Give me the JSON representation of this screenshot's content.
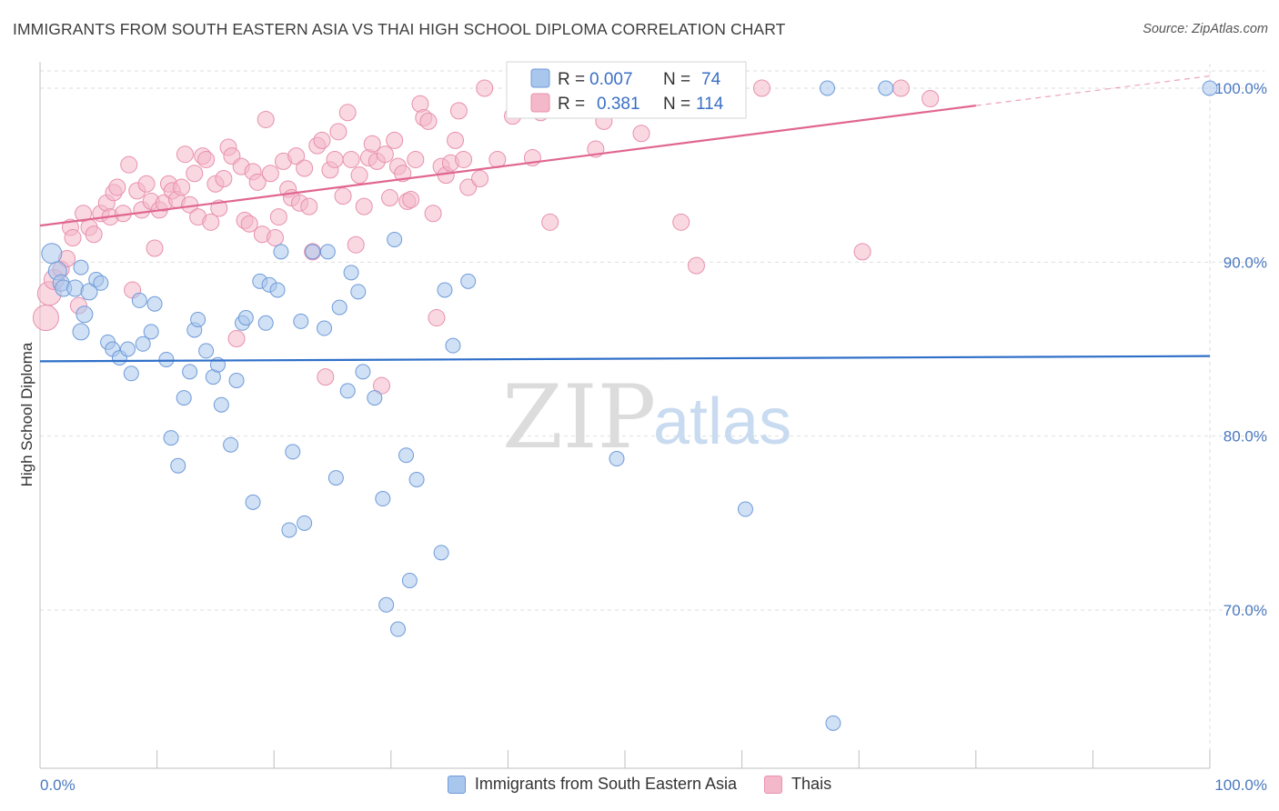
{
  "title": "IMMIGRANTS FROM SOUTH EASTERN ASIA VS THAI HIGH SCHOOL DIPLOMA CORRELATION CHART",
  "source": "Source: ZipAtlas.com",
  "watermark": {
    "zip": "ZIP",
    "atlas": "atlas"
  },
  "colors": {
    "blue_fill": "#a9c6ec",
    "blue_stroke": "#6f9bd8",
    "blue_line": "#2f6fc8",
    "pink_fill": "#f4b8cb",
    "pink_stroke": "#e890ae",
    "pink_line": "#e06690",
    "grid": "#dedede",
    "tick_text": "#4a78c0"
  },
  "legend": {
    "blue": {
      "r_label": "R =",
      "r_value": "0.007",
      "n_label": "N =",
      "n_value": "74"
    },
    "pink": {
      "r_label": "R =",
      "r_value": "0.381",
      "n_label": "N =",
      "n_value": "114"
    }
  },
  "bottom_legend": {
    "blue_label": "Immigrants from South Eastern Asia",
    "pink_label": "Thais"
  },
  "chart_data": {
    "type": "scatter",
    "xlabel": "",
    "ylabel": "High School Diploma",
    "xlim": [
      0,
      100
    ],
    "ylim": [
      60,
      102
    ],
    "x_tick_labels": [
      {
        "value": 0,
        "label": "0.0%"
      },
      {
        "value": 100,
        "label": "100.0%"
      }
    ],
    "y_tick_labels": [
      {
        "value": 70,
        "label": "70.0%"
      },
      {
        "value": 80,
        "label": "80.0%"
      },
      {
        "value": 90,
        "label": "90.0%"
      },
      {
        "value": 100,
        "label": "100.0%"
      }
    ],
    "grid": true,
    "series": [
      {
        "name": "Immigrants from South Eastern Asia",
        "color": "blue",
        "trend": {
          "x0": 0,
          "y0": 84.3,
          "x1": 100,
          "y1": 84.6
        },
        "points": [
          [
            1,
            90.5
          ],
          [
            1.5,
            89.5
          ],
          [
            1.8,
            88.8
          ],
          [
            2,
            88.5
          ],
          [
            3,
            88.5
          ],
          [
            3.5,
            86
          ],
          [
            3.8,
            87
          ],
          [
            4.2,
            88.3
          ],
          [
            4.8,
            89
          ],
          [
            5.2,
            88.8
          ],
          [
            5.8,
            85.4
          ],
          [
            6.2,
            85
          ],
          [
            6.8,
            84.5
          ],
          [
            7.5,
            85
          ],
          [
            7.8,
            83.6
          ],
          [
            8.5,
            87.8
          ],
          [
            8.8,
            85.3
          ],
          [
            9.5,
            86
          ],
          [
            9.8,
            87.6
          ],
          [
            10.8,
            84.4
          ],
          [
            11.2,
            79.9
          ],
          [
            11.8,
            78.3
          ],
          [
            12.3,
            82.2
          ],
          [
            12.8,
            83.7
          ],
          [
            13.2,
            86.1
          ],
          [
            13.5,
            86.7
          ],
          [
            14.2,
            84.9
          ],
          [
            14.8,
            83.4
          ],
          [
            15.2,
            84.1
          ],
          [
            15.5,
            81.8
          ],
          [
            16.3,
            79.5
          ],
          [
            16.8,
            83.2
          ],
          [
            17.3,
            86.5
          ],
          [
            17.6,
            86.8
          ],
          [
            18.2,
            76.2
          ],
          [
            18.8,
            88.9
          ],
          [
            19.3,
            86.5
          ],
          [
            19.6,
            88.7
          ],
          [
            20.3,
            88.4
          ],
          [
            20.6,
            90.6
          ],
          [
            21.3,
            74.6
          ],
          [
            21.6,
            79.1
          ],
          [
            22.3,
            86.6
          ],
          [
            22.6,
            75
          ],
          [
            23.3,
            90.6
          ],
          [
            24.3,
            86.2
          ],
          [
            24.6,
            90.6
          ],
          [
            25.3,
            77.6
          ],
          [
            25.6,
            87.4
          ],
          [
            26.3,
            82.6
          ],
          [
            26.6,
            89.4
          ],
          [
            27.2,
            88.3
          ],
          [
            27.6,
            83.7
          ],
          [
            28.6,
            82.2
          ],
          [
            29.3,
            76.4
          ],
          [
            29.6,
            70.3
          ],
          [
            30.3,
            91.3
          ],
          [
            30.6,
            68.9
          ],
          [
            31.3,
            78.9
          ],
          [
            31.6,
            71.7
          ],
          [
            32.2,
            77.5
          ],
          [
            34.3,
            73.3
          ],
          [
            34.6,
            88.4
          ],
          [
            35.3,
            85.2
          ],
          [
            36.6,
            88.9
          ],
          [
            43.3,
            99.5
          ],
          [
            48.3,
            100
          ],
          [
            49.3,
            78.7
          ],
          [
            60.3,
            75.8
          ],
          [
            67.3,
            100
          ],
          [
            67.8,
            63.5
          ],
          [
            72.3,
            100
          ],
          [
            100,
            100
          ],
          [
            3.5,
            89.7
          ]
        ],
        "radii": [
          11,
          10,
          9,
          9,
          9,
          9,
          9,
          9,
          8,
          8,
          8,
          8,
          8,
          8,
          8,
          8,
          8,
          8,
          8,
          8,
          8,
          8,
          8,
          8,
          8,
          8,
          8,
          8,
          8,
          8,
          8,
          8,
          8,
          8,
          8,
          8,
          8,
          8,
          8,
          8,
          8,
          8,
          8,
          8,
          8,
          8,
          8,
          8,
          8,
          8,
          8,
          8,
          8,
          8,
          8,
          8,
          8,
          8,
          8,
          8,
          8,
          8,
          8,
          8,
          8,
          8,
          8,
          8,
          8,
          8,
          8,
          8,
          8,
          8
        ]
      },
      {
        "name": "Thais",
        "color": "pink",
        "trend": {
          "x0": 0,
          "y0": 92.1,
          "x1": 80,
          "y1": 99
        },
        "trend_dashed": {
          "x0": 80,
          "y0": 99,
          "x1": 100,
          "y1": 100.7
        },
        "points": [
          [
            0.5,
            86.8
          ],
          [
            0.8,
            88.2
          ],
          [
            1.2,
            89
          ],
          [
            1.8,
            89.6
          ],
          [
            2.3,
            90.2
          ],
          [
            2.6,
            92
          ],
          [
            2.8,
            91.4
          ],
          [
            3.3,
            87.5
          ],
          [
            3.7,
            92.8
          ],
          [
            4.2,
            92
          ],
          [
            4.6,
            91.6
          ],
          [
            5.2,
            92.8
          ],
          [
            5.7,
            93.4
          ],
          [
            6,
            92.6
          ],
          [
            6.3,
            94
          ],
          [
            6.6,
            94.3
          ],
          [
            7.1,
            92.8
          ],
          [
            7.6,
            95.6
          ],
          [
            7.9,
            88.4
          ],
          [
            8.3,
            94.1
          ],
          [
            8.7,
            93
          ],
          [
            9.1,
            94.5
          ],
          [
            9.5,
            93.5
          ],
          [
            9.8,
            90.8
          ],
          [
            10.2,
            93
          ],
          [
            10.6,
            93.4
          ],
          [
            11,
            94.5
          ],
          [
            11.3,
            94.1
          ],
          [
            11.7,
            93.6
          ],
          [
            12.1,
            94.3
          ],
          [
            12.4,
            96.2
          ],
          [
            12.8,
            93.3
          ],
          [
            13.2,
            95.1
          ],
          [
            13.5,
            92.6
          ],
          [
            13.9,
            96.1
          ],
          [
            14.2,
            95.9
          ],
          [
            14.6,
            92.3
          ],
          [
            15,
            94.5
          ],
          [
            15.3,
            93.1
          ],
          [
            15.7,
            94.8
          ],
          [
            16.1,
            96.6
          ],
          [
            16.4,
            96.1
          ],
          [
            16.8,
            85.6
          ],
          [
            17.2,
            95.5
          ],
          [
            17.5,
            92.4
          ],
          [
            17.9,
            92.2
          ],
          [
            18.2,
            95.2
          ],
          [
            18.6,
            94.6
          ],
          [
            19,
            91.6
          ],
          [
            19.3,
            98.2
          ],
          [
            19.7,
            95.1
          ],
          [
            20.1,
            91.4
          ],
          [
            20.4,
            92.6
          ],
          [
            20.8,
            95.8
          ],
          [
            21.2,
            94.2
          ],
          [
            21.5,
            93.7
          ],
          [
            21.9,
            96.1
          ],
          [
            22.2,
            93.4
          ],
          [
            22.6,
            95.4
          ],
          [
            23,
            93.2
          ],
          [
            23.3,
            90.6
          ],
          [
            23.7,
            96.7
          ],
          [
            24.1,
            97
          ],
          [
            24.4,
            83.4
          ],
          [
            24.8,
            95.3
          ],
          [
            25.2,
            95.9
          ],
          [
            25.5,
            97.5
          ],
          [
            25.9,
            93.8
          ],
          [
            26.3,
            98.6
          ],
          [
            26.6,
            95.9
          ],
          [
            27,
            91
          ],
          [
            27.3,
            95
          ],
          [
            27.7,
            93.2
          ],
          [
            28.1,
            96
          ],
          [
            28.4,
            96.8
          ],
          [
            28.8,
            95.8
          ],
          [
            29.2,
            82.9
          ],
          [
            29.5,
            96.2
          ],
          [
            29.9,
            93.7
          ],
          [
            30.3,
            97
          ],
          [
            30.6,
            95.5
          ],
          [
            31,
            95.1
          ],
          [
            31.4,
            93.5
          ],
          [
            31.7,
            93.6
          ],
          [
            32.1,
            95.9
          ],
          [
            32.5,
            99.1
          ],
          [
            32.8,
            98.3
          ],
          [
            33.2,
            98.1
          ],
          [
            33.6,
            92.8
          ],
          [
            33.9,
            86.8
          ],
          [
            34.3,
            95.5
          ],
          [
            34.7,
            95
          ],
          [
            35.1,
            95.7
          ],
          [
            35.5,
            97
          ],
          [
            35.8,
            98.7
          ],
          [
            36.2,
            95.9
          ],
          [
            36.6,
            94.3
          ],
          [
            37.6,
            94.8
          ],
          [
            38,
            100
          ],
          [
            39.1,
            95.9
          ],
          [
            40.4,
            98.4
          ],
          [
            42.1,
            96
          ],
          [
            42.8,
            98.6
          ],
          [
            43.6,
            92.3
          ],
          [
            45.2,
            100
          ],
          [
            47.5,
            96.5
          ],
          [
            48.2,
            98.1
          ],
          [
            51.4,
            97.4
          ],
          [
            54.8,
            92.3
          ],
          [
            56.1,
            89.8
          ],
          [
            61.7,
            100
          ],
          [
            70.3,
            90.6
          ],
          [
            73.6,
            100
          ],
          [
            76.1,
            99.4
          ]
        ],
        "radii": [
          14,
          13,
          11,
          9,
          9,
          9,
          9,
          9,
          9,
          9,
          9,
          9,
          9,
          9,
          9,
          9,
          9,
          9,
          9,
          9,
          9,
          9,
          9,
          9,
          9,
          9,
          9,
          9,
          9,
          9,
          9,
          9,
          9,
          9,
          9,
          9,
          9,
          9,
          9,
          9,
          9,
          9,
          9,
          9,
          9,
          9,
          9,
          9,
          9,
          9,
          9,
          9,
          9,
          9,
          9,
          9,
          9,
          9,
          9,
          9,
          9,
          9,
          9,
          9,
          9,
          9,
          9,
          9,
          9,
          9,
          9,
          9,
          9,
          9,
          9,
          9,
          9,
          9,
          9,
          9,
          9,
          9,
          9,
          9,
          9,
          9,
          9,
          9,
          9,
          9,
          9,
          9,
          9,
          9,
          9,
          9,
          9,
          9,
          9,
          9,
          9,
          9,
          9,
          9,
          9,
          9,
          9,
          9,
          9,
          9,
          9,
          9,
          9,
          9
        ]
      }
    ]
  }
}
